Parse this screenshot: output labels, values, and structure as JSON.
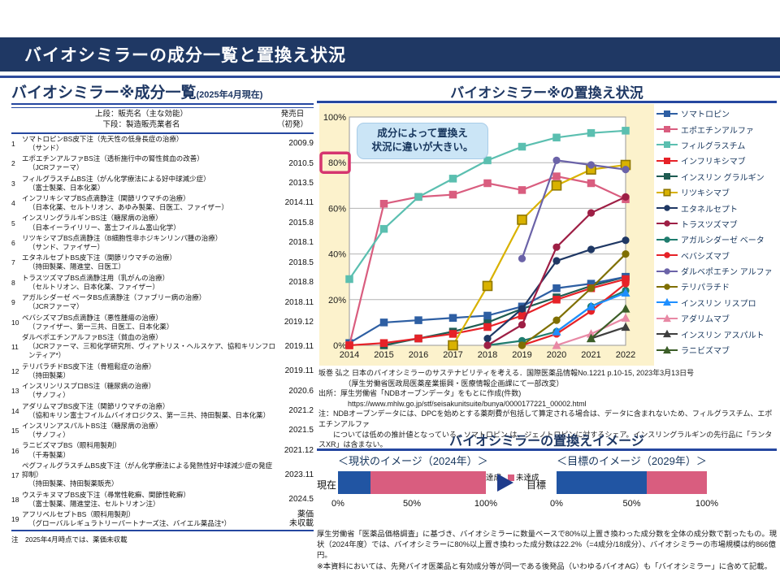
{
  "slide": {
    "title": "バイオシミラーの成分一覧と置換え状況"
  },
  "table_panel": {
    "title": "バイオシミラー※成分一覧",
    "title_suffix": "(2025年4月現在)",
    "header": {
      "col1_line1": "上段：販売名（主な効能）",
      "col1_line2": "下段：製造販売業者名",
      "col2_line1": "発売日",
      "col2_line2": "（初発）"
    },
    "rows": [
      {
        "no": "1",
        "name": "ソマトロピンBS皮下注（先天性の低身長症の治療）",
        "companies": "（サンド）",
        "date": "2009.9"
      },
      {
        "no": "2",
        "name": "エポエチンアルファBS注（透析施行中の腎性貧血の改善）",
        "companies": "（JCRファーマ）",
        "date": "2010.5"
      },
      {
        "no": "3",
        "name": "フィルグラスチムBS注（がん化学療法による好中球減少症）",
        "companies": "（富士製薬、日本化薬）",
        "date": "2013.5"
      },
      {
        "no": "4",
        "name": "インフリキシマブBS点滴静注（関節リウマチの治療）",
        "companies": "（日本化薬、セルトリオン、あゆみ製薬、日医工、ファイザー）",
        "date": "2014.11"
      },
      {
        "no": "5",
        "name": "インスリングラルギンBS注（糖尿病の治療）",
        "companies": "（日本イーライリリー、富士フイルム富山化学）",
        "date": "2015.8"
      },
      {
        "no": "6",
        "name": "リツキシマブBS点滴静注（B細胞性非ホジキンリンパ腫の治療）",
        "companies": "（サンド、ファイザー）",
        "date": "2018.1"
      },
      {
        "no": "7",
        "name": "エタネルセプトBS皮下注（関節リウマチの治療）",
        "companies": "（持田製薬、陽進堂、日医工）",
        "date": "2018.5"
      },
      {
        "no": "8",
        "name": "トラスツズマブBS点滴静注用（乳がんの治療）",
        "companies": "（セルトリオン、日本化薬、ファイザー）",
        "date": "2018.8"
      },
      {
        "no": "9",
        "name": "アガルシダーゼ ベータBS点滴静注（ファブリー病の治療）",
        "companies": "（JCRファーマ）",
        "date": "2018.11"
      },
      {
        "no": "10",
        "name": "ベバシズマブBS点滴静注（悪性腫瘍の治療）",
        "companies": "（ファイザー、第一三共、日医工、日本化薬）",
        "date": "2019.12"
      },
      {
        "no": "11",
        "name": "ダルベポエチンアルファBS注（貧血の治療）",
        "companies": "（JCRファーマ、三和化学研究所、ヴィアトリス・ヘルスケア、協和キリンフロンティア*）",
        "date": "2019.11"
      },
      {
        "no": "12",
        "name": "テリパラチドBS皮下注（骨粗鬆症の治療）",
        "companies": "（持田製薬）",
        "date": "2019.11"
      },
      {
        "no": "13",
        "name": "インスリンリスプロBS注（糖尿病の治療）",
        "companies": "（サノフィ）",
        "date": "2020.6"
      },
      {
        "no": "14",
        "name": "アダリムマブBS皮下注（関節リウマチの治療）",
        "companies": "（協和キリン富士フイルムバイオロジクス、第一三共、持田製薬、日本化薬）",
        "date": "2021.2"
      },
      {
        "no": "15",
        "name": "インスリンアスパルトBS注（糖尿病の治療）",
        "companies": "（サノフィ）",
        "date": "2021.5"
      },
      {
        "no": "16",
        "name": "ラニビズマブBS（眼科用製剤）",
        "companies": "（千寿製薬）",
        "date": "2021.12"
      },
      {
        "no": "17",
        "name": "ペグフィルグラスチムBS皮下注（がん化学療法による発熱性好中球減少症の発症抑制）",
        "companies": "（持田製薬、持田製薬販売）",
        "date": "2023.11"
      },
      {
        "no": "18",
        "name": "ウステキヌマブBS皮下注（尋常性乾癬、関節性乾癬）",
        "companies": "（富士製薬、陽進堂注、セルトリオン注）",
        "date": "2024.5"
      },
      {
        "no": "19",
        "name": "アフリベルセプトBS（眼科用製剤）",
        "companies": "（グローバルレギュラトリーパートナーズ注、バイエル薬品注*）",
        "date": "薬価\n未収載"
      }
    ],
    "footnote": "注　2025年4月時点では、薬価未収載"
  },
  "chart_panel": {
    "title": "バイオシミラー※の置換え状況",
    "callout_line1": "成分によって置換え",
    "callout_line2": "状況に違いが大きい。",
    "source_lines": [
      "坂巻 弘之 日本のバイオシミラーのサステナビリティを考える．国際医薬品情報No.1221 p.10-15, 2023年3月13日号",
      "　　　　（厚生労働省医政局医薬産業振興・医療情報企画課にて一部改変）",
      "出所：厚生労働省「NDBオープンデータ」をもとに作成(件数)",
      "　　　　https://www.mhlw.go.jp/stf/seisakunitsuite/bunya/0000177221_00002.html",
      "注：NDBオープンデータには、DPCを始めとする薬剤費が包括して算定される場合は、データに含まれないため、フィルグラスチム、エポエチンアルファ",
      "　　については低めの推計値となっている。ソマトロピン は、ジェノトロピンに対するシェア。インスリングラルギンの先行品に「ランタスXR」は含まない。"
    ]
  },
  "chart_data": {
    "type": "line",
    "title": "バイオシミラー※の置換え状況",
    "x": [
      2014,
      2015,
      2016,
      2017,
      2018,
      2019,
      2020,
      2021,
      2022
    ],
    "ylim": [
      0,
      100
    ],
    "y_ticks": [
      "0%",
      "20%",
      "40%",
      "60%",
      "80%",
      "100%"
    ],
    "highlighted_y_tick": "80%",
    "grid": true,
    "legend_position": "right",
    "plot_bg": "#ffffff",
    "panel_bg": "#FCF2CC",
    "series": [
      {
        "name": "ソマトロピン",
        "color": "#2E5FA3",
        "marker": "square",
        "z": 2,
        "values": [
          1,
          10,
          11,
          12,
          13,
          17,
          25,
          27,
          30
        ]
      },
      {
        "name": "エポエチンアルファ",
        "color": "#D95D7F",
        "marker": "square",
        "z": 3,
        "values": [
          0,
          62,
          65,
          66,
          71,
          68,
          74,
          71,
          64
        ]
      },
      {
        "name": "フィルグラスチム",
        "color": "#5BBFB0",
        "marker": "square",
        "z": 4,
        "values": [
          29,
          51,
          65,
          73,
          81,
          87,
          91,
          93,
          94
        ]
      },
      {
        "name": "インフリキシマブ",
        "color": "#E62228",
        "marker": "square",
        "z": 5,
        "values": [
          0,
          1,
          3,
          5,
          8,
          13,
          20,
          25,
          29
        ]
      },
      {
        "name": "インスリン グラルギン",
        "color": "#1F5C52",
        "marker": "square",
        "z": 0,
        "values": [
          null,
          0,
          3,
          6,
          10,
          16,
          21,
          26,
          30
        ]
      },
      {
        "name": "リツキシマブ",
        "color": "#D9B200",
        "marker": "square",
        "z": 6,
        "marker_stroke": "#8F7700",
        "marker_size": 11,
        "values": [
          null,
          null,
          null,
          0,
          26,
          55,
          70,
          77,
          79
        ]
      },
      {
        "name": "エタネルセプト",
        "color": "#1F3864",
        "marker": "circle",
        "z": 7,
        "values": [
          null,
          null,
          null,
          null,
          3,
          16,
          37,
          42,
          46
        ]
      },
      {
        "name": "トラスツズマブ",
        "color": "#9E1F45",
        "marker": "circle",
        "z": 8,
        "values": [
          null,
          null,
          null,
          null,
          0,
          9,
          43,
          58,
          65
        ]
      },
      {
        "name": "アガルシダーゼ ベータ",
        "color": "#1F7C6E",
        "marker": "circle",
        "z": 1,
        "values": [
          null,
          null,
          null,
          null,
          0,
          2,
          6,
          17,
          24
        ]
      },
      {
        "name": "ベバシズマブ",
        "color": "#E62228",
        "marker": "circle",
        "z": 9,
        "values": [
          null,
          null,
          null,
          null,
          null,
          0,
          5,
          15,
          27
        ]
      },
      {
        "name": "ダルベポエチン アルファ",
        "color": "#6B63A8",
        "marker": "circle",
        "z": 10,
        "values": [
          null,
          null,
          null,
          null,
          null,
          38,
          81,
          79,
          77
        ]
      },
      {
        "name": "テリパラチド",
        "color": "#7F6F00",
        "marker": "circle",
        "z": 11,
        "values": [
          null,
          null,
          null,
          null,
          null,
          0,
          11,
          25,
          40
        ]
      },
      {
        "name": "インスリン リスプロ",
        "color": "#1E8FFF",
        "marker": "triangle",
        "z": 12,
        "values": [
          null,
          null,
          null,
          null,
          null,
          null,
          6,
          17,
          23
        ]
      },
      {
        "name": "アダリムマブ",
        "color": "#E889A5",
        "marker": "triangle",
        "z": 13,
        "values": [
          null,
          null,
          null,
          null,
          null,
          null,
          0,
          5,
          12
        ]
      },
      {
        "name": "インスリン アスパルト",
        "color": "#3F3F3F",
        "marker": "triangle",
        "z": 14,
        "values": [
          null,
          null,
          null,
          null,
          null,
          null,
          null,
          3,
          8
        ]
      },
      {
        "name": "ラニビズマブ",
        "color": "#3C5E28",
        "marker": "triangle",
        "z": 15,
        "values": [
          null,
          null,
          null,
          null,
          null,
          null,
          null,
          3,
          16
        ]
      }
    ]
  },
  "image_panel": {
    "title": "バイオシミラーの置換えイメージ",
    "heading_current": "＜現状のイメージ（2024年）＞",
    "heading_target": "＜目標のイメージ（2029年）＞",
    "legend": {
      "achieved": "達成",
      "not_achieved": "未達成"
    },
    "colors": {
      "achieved": "#2155A3",
      "not_achieved": "#D95D7F",
      "arrow": "#1F3C8C"
    },
    "bars": {
      "current": {
        "row_label": "現在",
        "achieved_pct": 22.2
      },
      "target": {
        "row_label": "目標",
        "achieved_pct": 60
      }
    },
    "axis_ticks": [
      "0%",
      "50%",
      "100%"
    ],
    "notes": [
      "厚生労働省「医薬品価格調査」に基づき、バイオシミラーに数量ベースで80%以上置き換わった成分数を全体の成分数で割ったもの。現状（2024年度）では、バイオシミラーに80%以上置き換わった成分数は22.2%（=4成分/18成分）、バイオシミラーの市場規模は約866億円。",
      "※本資料においては、先発バイオ医薬品と有効成分等が同一である後発品（いわゆるバイオAG）も「バイオシミラー」に含めて記載。"
    ]
  }
}
